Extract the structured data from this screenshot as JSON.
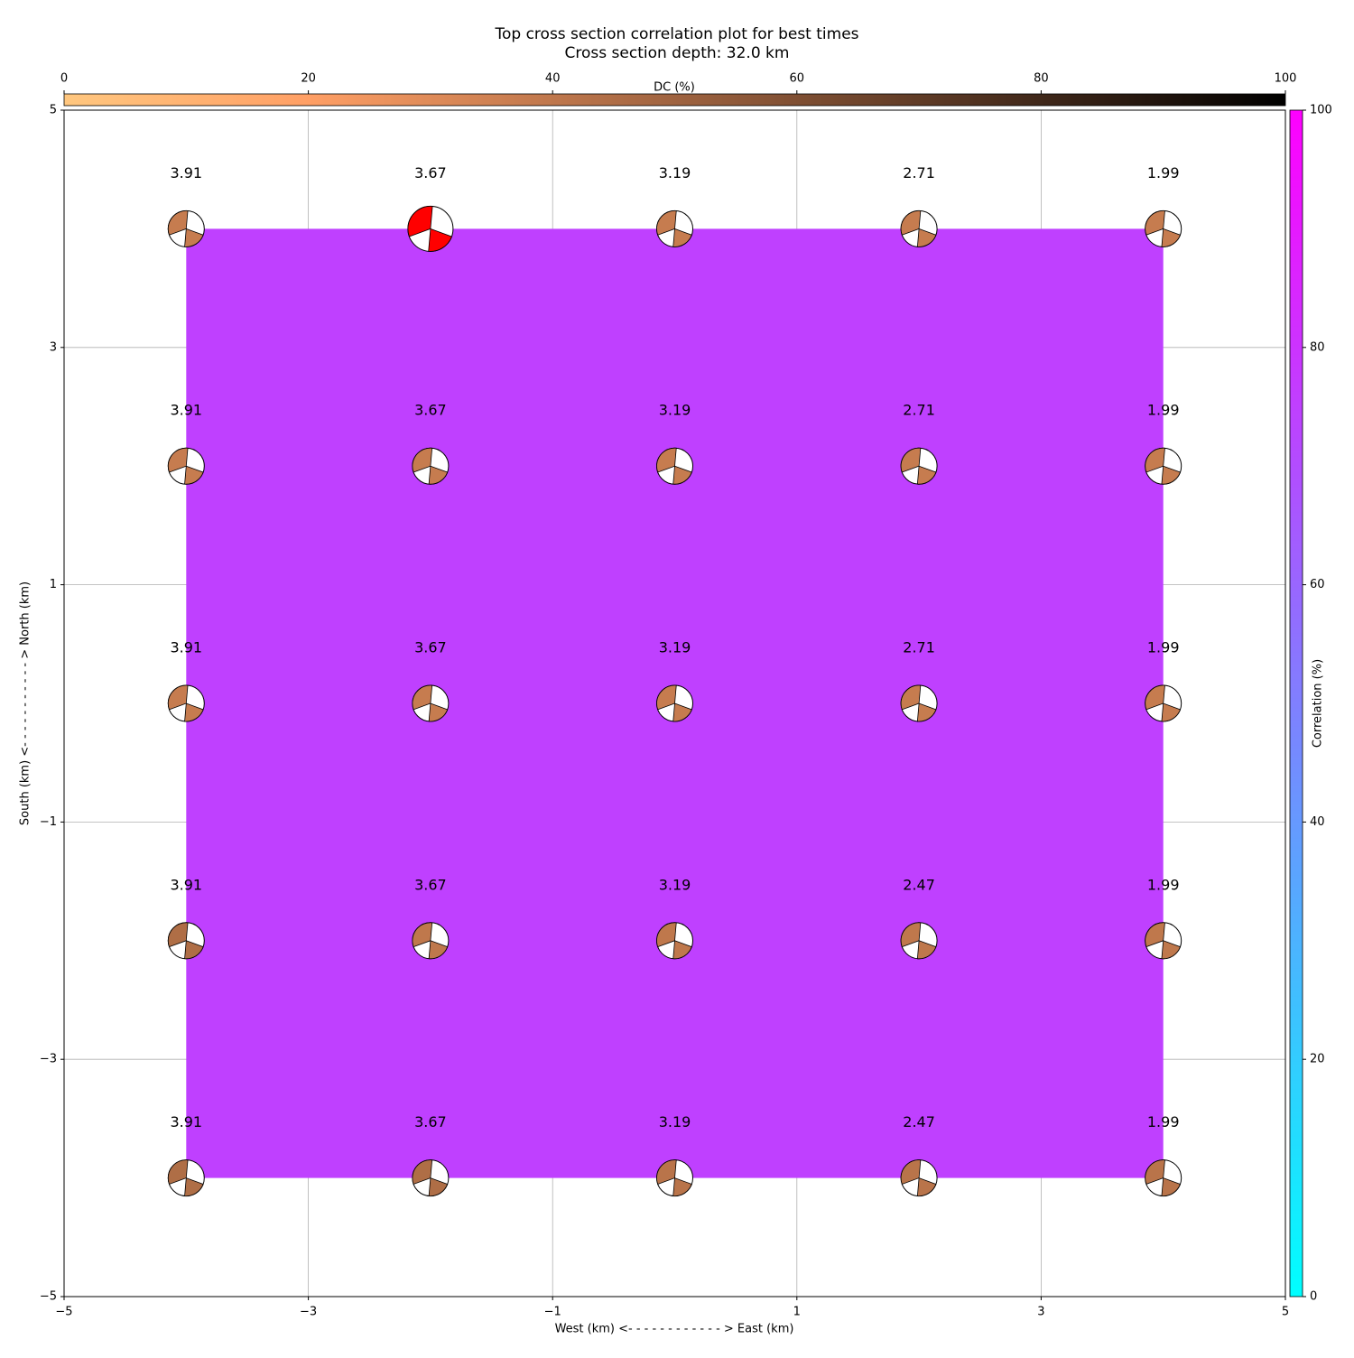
{
  "chart_data": {
    "type": "beachball-grid",
    "title": "Top cross section correlation plot for best times",
    "subtitle": "Cross section depth: 32.0 km",
    "x_label": "West (km) <- - - - - - - - - - - - > East (km)",
    "y_label": "South (km) <- - - - - - - - - - - > North (km)",
    "xlim": [
      -5,
      5
    ],
    "ylim": [
      -5,
      5
    ],
    "xticks": [
      {
        "value": -5,
        "label": "−5"
      },
      {
        "value": -3,
        "label": "−3"
      },
      {
        "value": -1,
        "label": "−1"
      },
      1,
      3,
      5
    ],
    "yticks": [
      {
        "value": -5,
        "label": "−5"
      },
      {
        "value": -3,
        "label": "−3"
      },
      {
        "value": -1,
        "label": "−1"
      },
      1,
      3,
      5
    ],
    "grid": true,
    "points": {
      "x": [
        -4,
        -2,
        0,
        2,
        4,
        -4,
        -2,
        0,
        2,
        4,
        -4,
        -2,
        0,
        2,
        4,
        -4,
        -2,
        0,
        2,
        4,
        -4,
        -2,
        0,
        2,
        4
      ],
      "y": [
        4,
        4,
        4,
        4,
        4,
        2,
        2,
        2,
        2,
        2,
        0,
        0,
        0,
        0,
        0,
        -2,
        -2,
        -2,
        -2,
        -2,
        -4,
        -4,
        -4,
        -4,
        -4
      ],
      "values": [
        3.91,
        3.67,
        3.19,
        2.71,
        1.99,
        3.91,
        3.67,
        3.19,
        2.71,
        1.99,
        3.91,
        3.67,
        3.19,
        2.71,
        1.99,
        3.91,
        3.67,
        3.19,
        2.47,
        1.99,
        3.91,
        3.67,
        3.19,
        2.47,
        1.99
      ],
      "dc": [
        38,
        38,
        38,
        38,
        38,
        38,
        38,
        38,
        38,
        38,
        38,
        38,
        38,
        38,
        38,
        45,
        40,
        40,
        40,
        40,
        45,
        45,
        42,
        42,
        42
      ]
    },
    "best_point": 1,
    "best_color": "#ff0000",
    "correlation": 75,
    "dc_colorbar": {
      "label": "DC (%)",
      "lim": [
        0,
        100
      ],
      "ticks": [
        0,
        20,
        40,
        60,
        80,
        100
      ]
    },
    "correlation_colorbar": {
      "label": "Correlation (%)",
      "lim": [
        0,
        100
      ],
      "ticks": [
        0,
        20,
        40,
        60,
        80,
        100
      ]
    }
  }
}
